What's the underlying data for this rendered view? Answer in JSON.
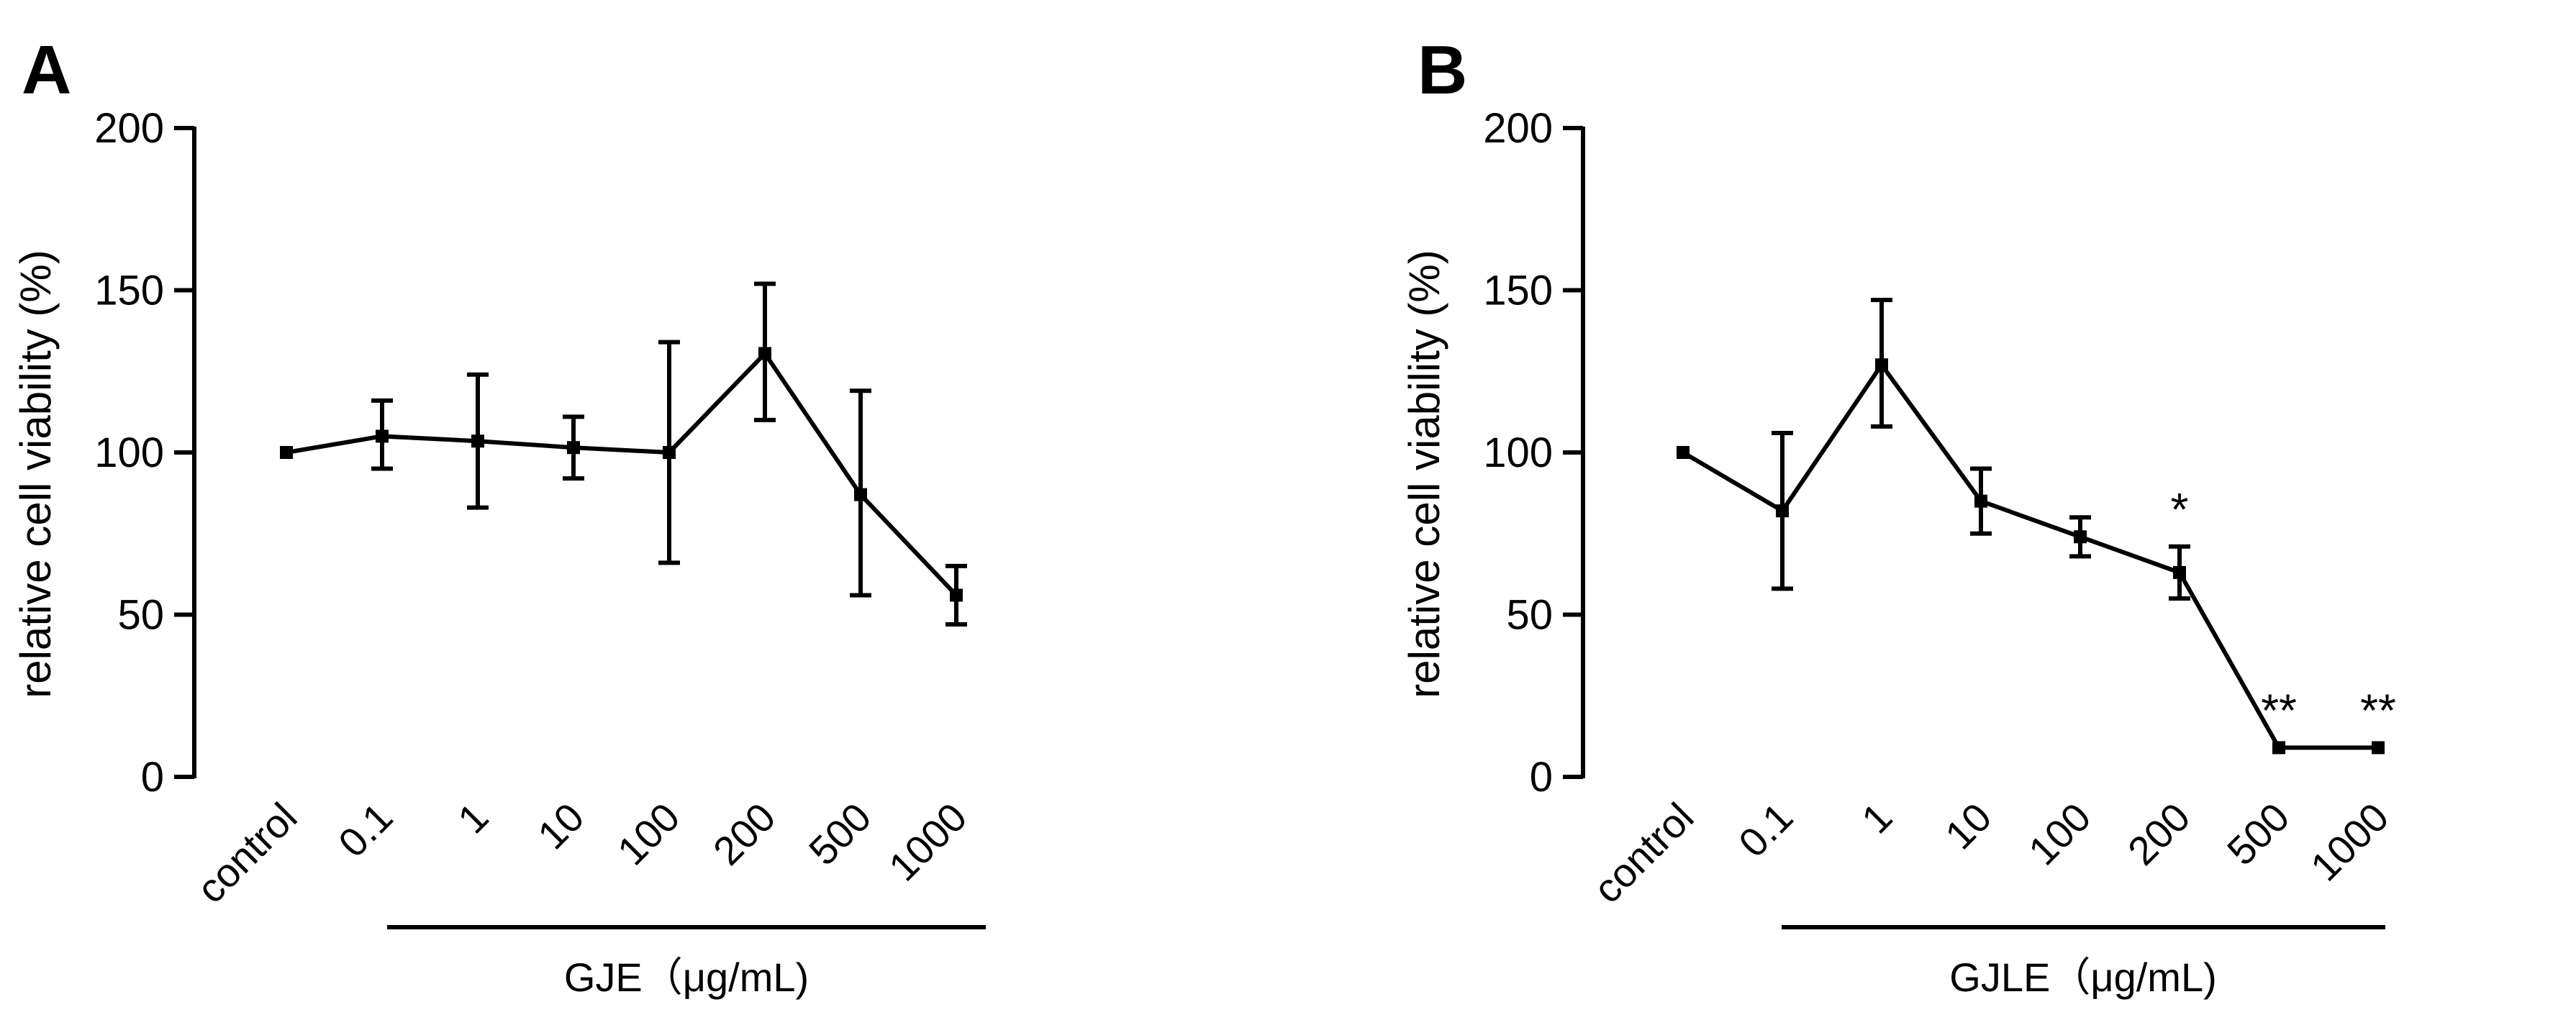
{
  "chart_data": [
    {
      "panel": "A",
      "type": "line",
      "ylabel": "relative cell viability (%)",
      "ylim": [
        0,
        200
      ],
      "yticks": [
        0,
        50,
        100,
        150,
        200
      ],
      "categories": [
        "control",
        "0.1",
        "1",
        "10",
        "100",
        "200",
        "500",
        "1000"
      ],
      "group_label": "GJE（μg/mL)",
      "series": [
        {
          "name": "GJE",
          "values": [
            100,
            105,
            103.5,
            101.5,
            100,
            130.5,
            87,
            56
          ],
          "error_low": [
            100,
            95,
            83,
            92,
            66,
            110,
            56,
            47
          ],
          "error_high": [
            100,
            116,
            124,
            111,
            134,
            152,
            119,
            65
          ],
          "significance": [
            "",
            "",
            "",
            "",
            "",
            "",
            "",
            ""
          ]
        }
      ]
    },
    {
      "panel": "B",
      "type": "line",
      "ylabel": "relative cell viability (%)",
      "ylim": [
        0,
        200
      ],
      "yticks": [
        0,
        50,
        100,
        150,
        200
      ],
      "categories": [
        "control",
        "0.1",
        "1",
        "10",
        "100",
        "200",
        "500",
        "1000"
      ],
      "group_label": "GJLE（μg/mL)",
      "series": [
        {
          "name": "GJLE",
          "values": [
            100,
            82,
            127,
            85,
            74,
            63,
            9,
            9
          ],
          "error_low": [
            100,
            58,
            108,
            75,
            68,
            55,
            9,
            9
          ],
          "error_high": [
            100,
            106,
            147,
            95,
            80,
            71,
            9,
            9
          ],
          "significance": [
            "",
            "",
            "",
            "",
            "",
            "*",
            "**",
            "**"
          ]
        }
      ]
    }
  ]
}
